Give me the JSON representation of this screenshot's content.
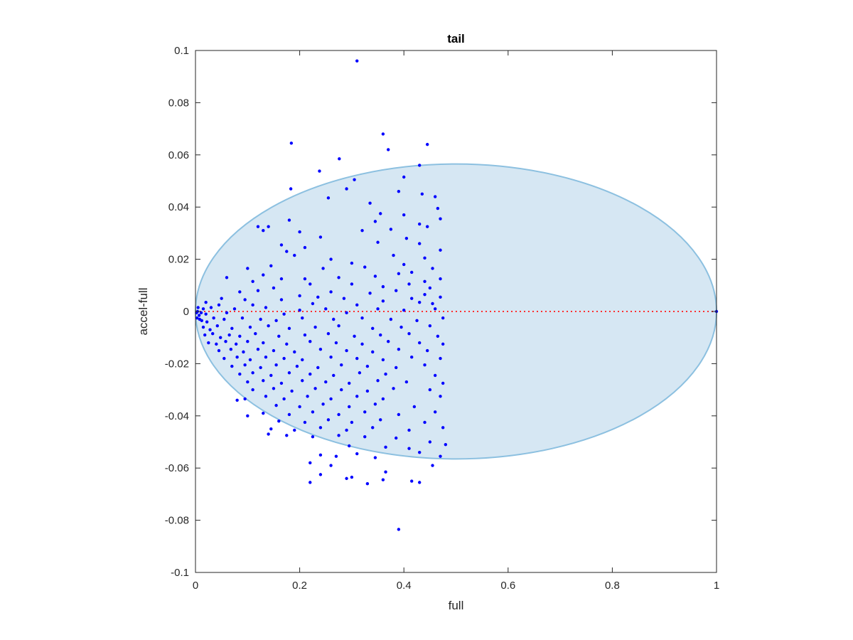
{
  "chart_data": {
    "type": "scatter",
    "title": "tail",
    "xlabel": "full",
    "ylabel": "accel-full",
    "xlim": [
      0,
      1
    ],
    "ylim": [
      -0.1,
      0.1
    ],
    "xticks": [
      0,
      0.2,
      0.4,
      0.6,
      0.8,
      1
    ],
    "xtick_labels": [
      "0",
      "0.2",
      "0.4",
      "0.6",
      "0.8",
      "1"
    ],
    "yticks": [
      -0.1,
      -0.08,
      -0.06,
      -0.04,
      -0.02,
      0,
      0.02,
      0.04,
      0.06,
      0.08,
      0.1
    ],
    "ytick_labels": [
      "-0.1",
      "-0.08",
      "-0.06",
      "-0.04",
      "-0.02",
      "0",
      "0.02",
      "0.04",
      "0.06",
      "0.08",
      "0.1"
    ],
    "grid": false,
    "colors": {
      "points": "#0000ff",
      "region_fill": "#d6e7f3",
      "region_stroke": "#8cc0e0",
      "reference_line": "#ff3030",
      "axes": "#262626"
    },
    "region": {
      "shape": "ellipse",
      "center_x": 0.5,
      "center_y": 0,
      "x_radius": 0.5,
      "y_radius": 0.0565
    },
    "reference_line": {
      "y": 0,
      "style": "dotted",
      "from_x": 0,
      "to_x": 1
    },
    "points": [
      [
        0.31,
        0.096
      ],
      [
        0.39,
        -0.0835
      ],
      [
        0.184,
        0.0645
      ],
      [
        0.36,
        0.068
      ],
      [
        0.445,
        0.064
      ],
      [
        0.37,
        0.062
      ],
      [
        0.276,
        0.0585
      ],
      [
        0.238,
        0.0538
      ],
      [
        0.43,
        0.056
      ],
      [
        0.183,
        0.047
      ],
      [
        0.4,
        0.0515
      ],
      [
        0.305,
        0.0505
      ],
      [
        0.29,
        0.047
      ],
      [
        0.255,
        0.0435
      ],
      [
        0.39,
        0.046
      ],
      [
        0.435,
        0.045
      ],
      [
        0.46,
        0.044
      ],
      [
        0.335,
        0.0415
      ],
      [
        0.465,
        0.0395
      ],
      [
        0.355,
        0.0375
      ],
      [
        0.4,
        0.037
      ],
      [
        0.47,
        0.0355
      ],
      [
        0.18,
        0.035
      ],
      [
        0.43,
        0.0335
      ],
      [
        0.345,
        0.0345
      ],
      [
        0.12,
        0.0325
      ],
      [
        0.14,
        0.0325
      ],
      [
        0.13,
        0.031
      ],
      [
        0.2,
        0.0305
      ],
      [
        0.32,
        0.031
      ],
      [
        0.375,
        0.0315
      ],
      [
        0.445,
        0.0325
      ],
      [
        0.405,
        0.028
      ],
      [
        0.24,
        0.0285
      ],
      [
        0.43,
        0.026
      ],
      [
        0.35,
        0.0265
      ],
      [
        0.165,
        0.0255
      ],
      [
        0.21,
        0.0245
      ],
      [
        0.47,
        0.0235
      ],
      [
        0.175,
        0.023
      ],
      [
        0.19,
        0.0215
      ],
      [
        0.38,
        0.0215
      ],
      [
        0.26,
        0.02
      ],
      [
        0.44,
        0.0205
      ],
      [
        0.3,
        0.0185
      ],
      [
        0.4,
        0.018
      ],
      [
        0.325,
        0.017
      ],
      [
        0.145,
        0.0175
      ],
      [
        0.245,
        0.0165
      ],
      [
        0.455,
        0.0165
      ],
      [
        0.415,
        0.015
      ],
      [
        0.1,
        0.0165
      ],
      [
        0.13,
        0.014
      ],
      [
        0.165,
        0.0125
      ],
      [
        0.275,
        0.013
      ],
      [
        0.345,
        0.0135
      ],
      [
        0.39,
        0.0145
      ],
      [
        0.06,
        0.013
      ],
      [
        0.11,
        0.0115
      ],
      [
        0.21,
        0.0125
      ],
      [
        0.44,
        0.0115
      ],
      [
        0.47,
        0.0125
      ],
      [
        0.15,
        0.009
      ],
      [
        0.22,
        0.0105
      ],
      [
        0.3,
        0.0105
      ],
      [
        0.36,
        0.0095
      ],
      [
        0.41,
        0.0105
      ],
      [
        0.45,
        0.009
      ],
      [
        0.085,
        0.0075
      ],
      [
        0.12,
        0.008
      ],
      [
        0.26,
        0.0075
      ],
      [
        0.335,
        0.007
      ],
      [
        0.385,
        0.008
      ],
      [
        0.2,
        0.006
      ],
      [
        0.235,
        0.0055
      ],
      [
        0.44,
        0.0065
      ],
      [
        0.47,
        0.0055
      ],
      [
        0.05,
        0.005
      ],
      [
        0.095,
        0.0045
      ],
      [
        0.165,
        0.0045
      ],
      [
        0.285,
        0.005
      ],
      [
        0.36,
        0.004
      ],
      [
        0.415,
        0.005
      ],
      [
        0.455,
        0.003
      ],
      [
        0.02,
        0.0035
      ],
      [
        0.045,
        0.0025
      ],
      [
        0.11,
        0.0025
      ],
      [
        0.225,
        0.003
      ],
      [
        0.31,
        0.0025
      ],
      [
        0.43,
        0.0035
      ],
      [
        0.005,
        0.0015
      ],
      [
        0.015,
        0.001
      ],
      [
        0.03,
        0.0015
      ],
      [
        0.075,
        0.001
      ],
      [
        0.135,
        0.0015
      ],
      [
        0.2,
        0.0005
      ],
      [
        0.25,
        0.001
      ],
      [
        0.35,
        0.001
      ],
      [
        0.4,
        0.0005
      ],
      [
        0.46,
        0.001
      ],
      [
        0.002,
        -0.0005
      ],
      [
        0.004,
        0.0
      ],
      [
        0.007,
        -0.0015
      ],
      [
        0.011,
        -0.0005
      ],
      [
        0.02,
        -0.001
      ],
      [
        0.06,
        -0.0005
      ],
      [
        0.17,
        -0.001
      ],
      [
        0.29,
        -0.0005
      ],
      [
        0.003,
        -0.0025
      ],
      [
        0.008,
        -0.003
      ],
      [
        0.012,
        -0.0035
      ],
      [
        0.022,
        -0.004
      ],
      [
        0.035,
        -0.0025
      ],
      [
        0.055,
        -0.003
      ],
      [
        0.09,
        -0.0025
      ],
      [
        0.125,
        -0.003
      ],
      [
        0.155,
        -0.0035
      ],
      [
        0.205,
        -0.0025
      ],
      [
        0.265,
        -0.003
      ],
      [
        0.32,
        -0.0025
      ],
      [
        0.375,
        -0.003
      ],
      [
        0.425,
        -0.0035
      ],
      [
        0.475,
        -0.0025
      ],
      [
        0.015,
        -0.006
      ],
      [
        0.028,
        -0.007
      ],
      [
        0.042,
        -0.0055
      ],
      [
        0.07,
        -0.0065
      ],
      [
        0.105,
        -0.006
      ],
      [
        0.14,
        -0.0055
      ],
      [
        0.18,
        -0.0065
      ],
      [
        0.23,
        -0.006
      ],
      [
        0.275,
        -0.0055
      ],
      [
        0.34,
        -0.0065
      ],
      [
        0.395,
        -0.006
      ],
      [
        0.45,
        -0.0055
      ],
      [
        0.018,
        -0.009
      ],
      [
        0.033,
        -0.0085
      ],
      [
        0.048,
        -0.01
      ],
      [
        0.065,
        -0.009
      ],
      [
        0.085,
        -0.0095
      ],
      [
        0.115,
        -0.0085
      ],
      [
        0.16,
        -0.0095
      ],
      [
        0.21,
        -0.009
      ],
      [
        0.255,
        -0.0085
      ],
      [
        0.305,
        -0.0095
      ],
      [
        0.355,
        -0.009
      ],
      [
        0.41,
        -0.0085
      ],
      [
        0.465,
        -0.0095
      ],
      [
        0.025,
        -0.012
      ],
      [
        0.04,
        -0.0125
      ],
      [
        0.058,
        -0.0115
      ],
      [
        0.078,
        -0.0125
      ],
      [
        0.1,
        -0.0115
      ],
      [
        0.13,
        -0.012
      ],
      [
        0.175,
        -0.0125
      ],
      [
        0.22,
        -0.0115
      ],
      [
        0.27,
        -0.012
      ],
      [
        0.32,
        -0.0125
      ],
      [
        0.37,
        -0.0115
      ],
      [
        0.43,
        -0.012
      ],
      [
        0.475,
        -0.0125
      ],
      [
        0.045,
        -0.015
      ],
      [
        0.068,
        -0.0145
      ],
      [
        0.092,
        -0.0155
      ],
      [
        0.12,
        -0.0145
      ],
      [
        0.15,
        -0.015
      ],
      [
        0.19,
        -0.0155
      ],
      [
        0.24,
        -0.0145
      ],
      [
        0.29,
        -0.015
      ],
      [
        0.34,
        -0.0155
      ],
      [
        0.39,
        -0.0145
      ],
      [
        0.445,
        -0.015
      ],
      [
        0.055,
        -0.018
      ],
      [
        0.08,
        -0.0175
      ],
      [
        0.105,
        -0.0185
      ],
      [
        0.135,
        -0.0175
      ],
      [
        0.17,
        -0.018
      ],
      [
        0.205,
        -0.0185
      ],
      [
        0.26,
        -0.0175
      ],
      [
        0.31,
        -0.018
      ],
      [
        0.36,
        -0.0185
      ],
      [
        0.415,
        -0.0175
      ],
      [
        0.47,
        -0.018
      ],
      [
        0.07,
        -0.021
      ],
      [
        0.095,
        -0.0205
      ],
      [
        0.125,
        -0.0215
      ],
      [
        0.155,
        -0.0205
      ],
      [
        0.195,
        -0.021
      ],
      [
        0.235,
        -0.0215
      ],
      [
        0.28,
        -0.0205
      ],
      [
        0.33,
        -0.021
      ],
      [
        0.385,
        -0.0215
      ],
      [
        0.44,
        -0.0205
      ],
      [
        0.085,
        -0.024
      ],
      [
        0.11,
        -0.0235
      ],
      [
        0.145,
        -0.0245
      ],
      [
        0.18,
        -0.0235
      ],
      [
        0.22,
        -0.024
      ],
      [
        0.265,
        -0.0245
      ],
      [
        0.315,
        -0.0235
      ],
      [
        0.365,
        -0.024
      ],
      [
        0.46,
        -0.0245
      ],
      [
        0.1,
        -0.027
      ],
      [
        0.13,
        -0.0265
      ],
      [
        0.165,
        -0.0275
      ],
      [
        0.205,
        -0.0265
      ],
      [
        0.25,
        -0.027
      ],
      [
        0.295,
        -0.0275
      ],
      [
        0.35,
        -0.0265
      ],
      [
        0.405,
        -0.027
      ],
      [
        0.475,
        -0.0275
      ],
      [
        0.11,
        -0.03
      ],
      [
        0.15,
        -0.0295
      ],
      [
        0.185,
        -0.0305
      ],
      [
        0.23,
        -0.0295
      ],
      [
        0.28,
        -0.03
      ],
      [
        0.33,
        -0.0305
      ],
      [
        0.38,
        -0.0295
      ],
      [
        0.45,
        -0.03
      ],
      [
        0.095,
        -0.0335
      ],
      [
        0.135,
        -0.0325
      ],
      [
        0.17,
        -0.0335
      ],
      [
        0.215,
        -0.0325
      ],
      [
        0.26,
        -0.0335
      ],
      [
        0.31,
        -0.0325
      ],
      [
        0.36,
        -0.0335
      ],
      [
        0.47,
        -0.0325
      ],
      [
        0.08,
        -0.034
      ],
      [
        0.155,
        -0.036
      ],
      [
        0.2,
        -0.0365
      ],
      [
        0.245,
        -0.0355
      ],
      [
        0.295,
        -0.0365
      ],
      [
        0.345,
        -0.0355
      ],
      [
        0.42,
        -0.0365
      ],
      [
        0.13,
        -0.039
      ],
      [
        0.18,
        -0.0395
      ],
      [
        0.225,
        -0.0385
      ],
      [
        0.275,
        -0.0395
      ],
      [
        0.325,
        -0.0385
      ],
      [
        0.39,
        -0.0395
      ],
      [
        0.46,
        -0.0385
      ],
      [
        0.1,
        -0.04
      ],
      [
        0.16,
        -0.042
      ],
      [
        0.21,
        -0.0425
      ],
      [
        0.255,
        -0.0415
      ],
      [
        0.3,
        -0.0425
      ],
      [
        0.355,
        -0.0415
      ],
      [
        0.44,
        -0.0425
      ],
      [
        0.145,
        -0.045
      ],
      [
        0.19,
        -0.0455
      ],
      [
        0.24,
        -0.0445
      ],
      [
        0.29,
        -0.0455
      ],
      [
        0.34,
        -0.0445
      ],
      [
        0.41,
        -0.0455
      ],
      [
        0.475,
        -0.0445
      ],
      [
        0.14,
        -0.047
      ],
      [
        0.175,
        -0.0475
      ],
      [
        0.225,
        -0.048
      ],
      [
        0.275,
        -0.0475
      ],
      [
        0.325,
        -0.048
      ],
      [
        0.385,
        -0.0485
      ],
      [
        0.45,
        -0.05
      ],
      [
        0.48,
        -0.051
      ],
      [
        0.295,
        -0.0515
      ],
      [
        0.365,
        -0.052
      ],
      [
        0.41,
        -0.0525
      ],
      [
        0.43,
        -0.054
      ],
      [
        0.31,
        -0.0545
      ],
      [
        0.24,
        -0.055
      ],
      [
        0.27,
        -0.0555
      ],
      [
        0.47,
        -0.0555
      ],
      [
        0.345,
        -0.056
      ],
      [
        0.22,
        -0.058
      ],
      [
        0.26,
        -0.059
      ],
      [
        0.455,
        -0.059
      ],
      [
        0.365,
        -0.0615
      ],
      [
        0.3,
        -0.0635
      ],
      [
        0.24,
        -0.0625
      ],
      [
        0.29,
        -0.064
      ],
      [
        0.33,
        -0.066
      ],
      [
        0.22,
        -0.0655
      ],
      [
        0.36,
        -0.0645
      ],
      [
        0.415,
        -0.065
      ],
      [
        0.43,
        -0.0655
      ],
      [
        1.0,
        0.0
      ]
    ]
  }
}
